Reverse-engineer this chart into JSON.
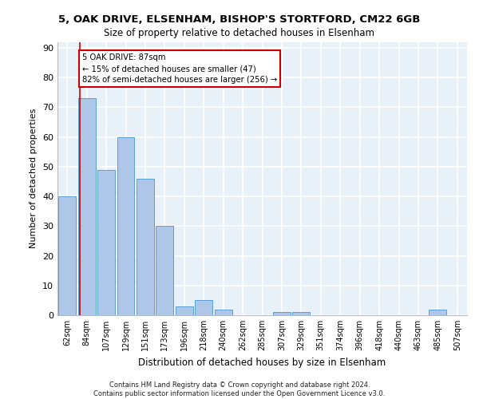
{
  "title1": "5, OAK DRIVE, ELSENHAM, BISHOP'S STORTFORD, CM22 6GB",
  "title2": "Size of property relative to detached houses in Elsenham",
  "xlabel": "Distribution of detached houses by size in Elsenham",
  "ylabel": "Number of detached properties",
  "categories": [
    "62sqm",
    "84sqm",
    "107sqm",
    "129sqm",
    "151sqm",
    "173sqm",
    "196sqm",
    "218sqm",
    "240sqm",
    "262sqm",
    "285sqm",
    "307sqm",
    "329sqm",
    "351sqm",
    "374sqm",
    "396sqm",
    "418sqm",
    "440sqm",
    "463sqm",
    "485sqm",
    "507sqm"
  ],
  "values": [
    40,
    73,
    49,
    60,
    46,
    30,
    3,
    5,
    2,
    0,
    0,
    1,
    1,
    0,
    0,
    0,
    0,
    0,
    0,
    2,
    0
  ],
  "bar_color": "#aec6e8",
  "bar_edge_color": "#5a9fd4",
  "background_color": "#e8f0f8",
  "annotation_line1": "5 OAK DRIVE: 87sqm",
  "annotation_line2": "← 15% of detached houses are smaller (47)",
  "annotation_line3": "82% of semi-detached houses are larger (256) →",
  "ylim": [
    0,
    92
  ],
  "yticks": [
    0,
    10,
    20,
    30,
    40,
    50,
    60,
    70,
    80,
    90
  ],
  "footer1": "Contains HM Land Registry data © Crown copyright and database right 2024.",
  "footer2": "Contains public sector information licensed under the Open Government Licence v3.0."
}
